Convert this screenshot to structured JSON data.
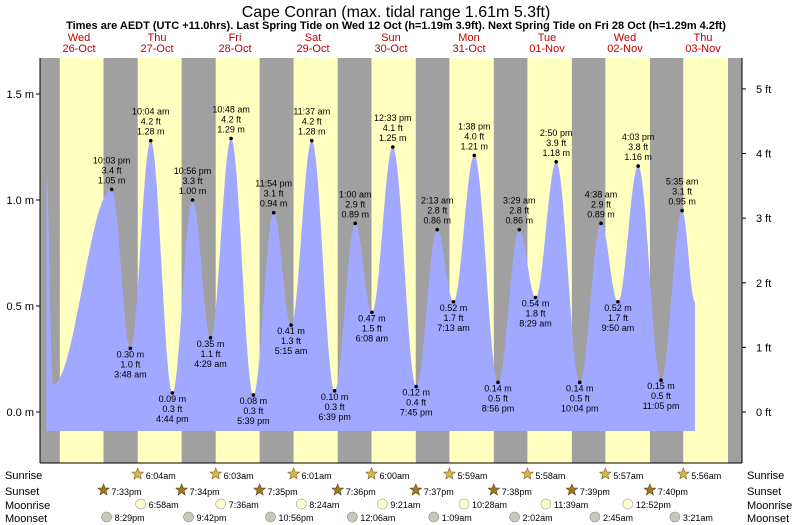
{
  "title": "Cape Conran (max. tidal range 1.61m 5.3ft)",
  "subtitle": "Times are AEDT (UTC +11.0hrs). Last Spring Tide on Wed 12 Oct (h=1.19m 3.9ft). Next Spring Tide on Fri 28 Oct (h=1.29m 4.2ft)",
  "colors": {
    "day": "#ffffc0",
    "night": "#a0a0a0",
    "water": "#a0a8ff",
    "dayLabel": "#c00000"
  },
  "days": [
    {
      "name": "Wed",
      "date": "26-Oct"
    },
    {
      "name": "Thu",
      "date": "27-Oct"
    },
    {
      "name": "Fri",
      "date": "28-Oct"
    },
    {
      "name": "Sat",
      "date": "29-Oct"
    },
    {
      "name": "Sun",
      "date": "30-Oct"
    },
    {
      "name": "Mon",
      "date": "31-Oct"
    },
    {
      "name": "Tue",
      "date": "01-Nov"
    },
    {
      "name": "Wed",
      "date": "02-Nov"
    },
    {
      "name": "Thu",
      "date": "03-Nov"
    }
  ],
  "chart_data": {
    "type": "area",
    "title": "Cape Conran (max. tidal range 1.61m 5.3ft)",
    "ylabel_left": "m",
    "ylabel_right": "ft",
    "ylim": [
      -0.1,
      1.67
    ],
    "x_start": "Wed 26-Oct 00:00",
    "x_hours": 216,
    "left_ticks": [
      "0.0 m",
      "0.5 m",
      "1.0 m",
      "1.5 m"
    ],
    "left_tick_values": [
      0,
      0.5,
      1.0,
      1.5
    ],
    "right_ticks": [
      "0 ft",
      "1 ft",
      "2 ft",
      "3 ft",
      "4 ft",
      "5 ft"
    ],
    "right_tick_values": [
      0,
      1,
      2,
      3,
      4,
      5
    ],
    "series": [
      {
        "name": "Tide height (m)",
        "extremes": [
          {
            "t": "10:03 pm",
            "hour": 22.05,
            "m": "1.05 m",
            "ft": "3.4 ft",
            "v": 1.05,
            "type": "high"
          },
          {
            "t": "3:48 am",
            "hour": 27.8,
            "m": "0.30 m",
            "ft": "1.0 ft",
            "v": 0.3,
            "type": "low"
          },
          {
            "t": "10:04 am",
            "hour": 34.07,
            "m": "1.28 m",
            "ft": "4.2 ft",
            "v": 1.28,
            "type": "high"
          },
          {
            "t": "4:44 pm",
            "hour": 40.73,
            "m": "0.09 m",
            "ft": "0.3 ft",
            "v": 0.09,
            "type": "low"
          },
          {
            "t": "10:56 pm",
            "hour": 46.93,
            "m": "1.00 m",
            "ft": "3.3 ft",
            "v": 1.0,
            "type": "high"
          },
          {
            "t": "4:29 am",
            "hour": 52.48,
            "m": "0.35 m",
            "ft": "1.1 ft",
            "v": 0.35,
            "type": "low"
          },
          {
            "t": "10:48 am",
            "hour": 58.8,
            "m": "1.29 m",
            "ft": "4.2 ft",
            "v": 1.29,
            "type": "high"
          },
          {
            "t": "5:39 pm",
            "hour": 65.65,
            "m": "0.08 m",
            "ft": "0.3 ft",
            "v": 0.08,
            "type": "low"
          },
          {
            "t": "11:54 pm",
            "hour": 71.9,
            "m": "0.94 m",
            "ft": "3.1 ft",
            "v": 0.94,
            "type": "high"
          },
          {
            "t": "5:15 am",
            "hour": 77.25,
            "m": "0.41 m",
            "ft": "1.3 ft",
            "v": 0.41,
            "type": "low"
          },
          {
            "t": "11:37 am",
            "hour": 83.62,
            "m": "1.28 m",
            "ft": "4.2 ft",
            "v": 1.28,
            "type": "high"
          },
          {
            "t": "6:39 pm",
            "hour": 90.65,
            "m": "0.10 m",
            "ft": "0.3 ft",
            "v": 0.1,
            "type": "low"
          },
          {
            "t": "1:00 am",
            "hour": 97.0,
            "m": "0.89 m",
            "ft": "2.9 ft",
            "v": 0.89,
            "type": "high"
          },
          {
            "t": "6:08 am",
            "hour": 102.13,
            "m": "0.47 m",
            "ft": "1.5 ft",
            "v": 0.47,
            "type": "low"
          },
          {
            "t": "12:33 pm",
            "hour": 108.55,
            "m": "1.25 m",
            "ft": "4.1 ft",
            "v": 1.25,
            "type": "high"
          },
          {
            "t": "7:45 pm",
            "hour": 115.75,
            "m": "0.12 m",
            "ft": "0.4 ft",
            "v": 0.12,
            "type": "low"
          },
          {
            "t": "2:13 am",
            "hour": 122.22,
            "m": "0.86 m",
            "ft": "2.8 ft",
            "v": 0.86,
            "type": "high"
          },
          {
            "t": "7:13 am",
            "hour": 127.22,
            "m": "0.52 m",
            "ft": "1.7 ft",
            "v": 0.52,
            "type": "low"
          },
          {
            "t": "1:38 pm",
            "hour": 133.63,
            "m": "1.21 m",
            "ft": "4.0 ft",
            "v": 1.21,
            "type": "high"
          },
          {
            "t": "8:56 pm",
            "hour": 140.93,
            "m": "0.14 m",
            "ft": "0.5 ft",
            "v": 0.14,
            "type": "low"
          },
          {
            "t": "3:29 am",
            "hour": 147.48,
            "m": "0.86 m",
            "ft": "2.8 ft",
            "v": 0.86,
            "type": "high"
          },
          {
            "t": "8:29 am",
            "hour": 152.48,
            "m": "0.54 m",
            "ft": "1.8 ft",
            "v": 0.54,
            "type": "low"
          },
          {
            "t": "2:50 pm",
            "hour": 158.83,
            "m": "1.18 m",
            "ft": "3.9 ft",
            "v": 1.18,
            "type": "high"
          },
          {
            "t": "10:04 pm",
            "hour": 166.07,
            "m": "0.14 m",
            "ft": "0.5 ft",
            "v": 0.14,
            "type": "low"
          },
          {
            "t": "4:38 am",
            "hour": 172.63,
            "m": "0.89 m",
            "ft": "2.9 ft",
            "v": 0.89,
            "type": "high"
          },
          {
            "t": "9:50 am",
            "hour": 177.83,
            "m": "0.52 m",
            "ft": "1.7 ft",
            "v": 0.52,
            "type": "low"
          },
          {
            "t": "4:03 pm",
            "hour": 184.05,
            "m": "1.16 m",
            "ft": "3.8 ft",
            "v": 1.16,
            "type": "high"
          },
          {
            "t": "11:05 pm",
            "hour": 191.08,
            "m": "0.15 m",
            "ft": "0.5 ft",
            "v": 0.15,
            "type": "low"
          },
          {
            "t": "5:35 am",
            "hour": 197.58,
            "m": "0.95 m",
            "ft": "3.1 ft",
            "v": 0.95,
            "type": "high"
          }
        ]
      }
    ],
    "night_hours": [
      [
        0,
        6.1
      ],
      [
        19.55,
        30.07
      ],
      [
        43.57,
        54.05
      ],
      [
        67.58,
        78.02
      ],
      [
        91.6,
        102
      ],
      [
        115.62,
        125.98
      ],
      [
        139.63,
        149.97
      ],
      [
        163.65,
        173.95
      ],
      [
        187.67,
        197.93
      ],
      [
        211.68,
        216
      ]
    ]
  },
  "astro": {
    "labels": {
      "sunrise": "Sunrise",
      "sunset": "Sunset",
      "moonrise": "Moonrise",
      "moonset": "Moonset"
    },
    "sunrise": [
      "6:04am",
      "6:03am",
      "6:01am",
      "6:00am",
      "5:59am",
      "5:58am",
      "5:57am",
      "5:56am"
    ],
    "sunset": [
      "7:33pm",
      "7:34pm",
      "7:35pm",
      "7:36pm",
      "7:37pm",
      "7:38pm",
      "7:39pm",
      "7:40pm"
    ],
    "moonrise": [
      "6:58am",
      "7:36am",
      "8:24am",
      "9:21am",
      "10:28am",
      "11:39am",
      "12:52pm"
    ],
    "moonset": [
      "8:29pm",
      "9:42pm",
      "10:56pm",
      "12:06am",
      "1:09am",
      "2:02am",
      "2:45am",
      "3:21am"
    ]
  }
}
